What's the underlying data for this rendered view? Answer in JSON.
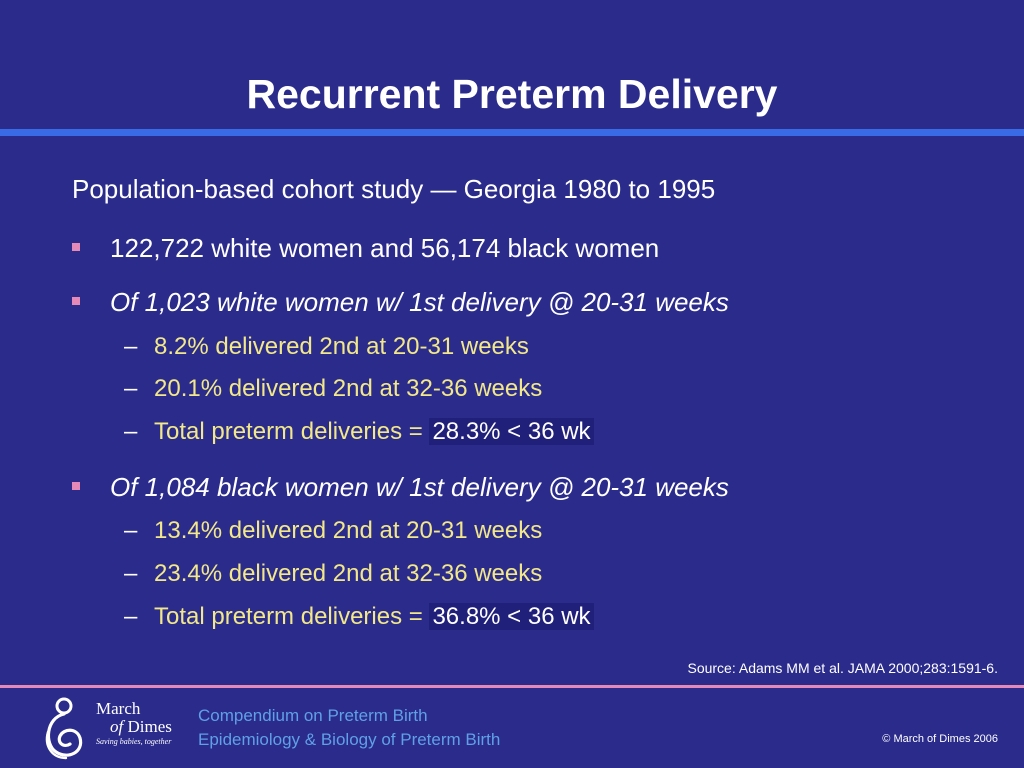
{
  "title": "Recurrent Preterm Delivery",
  "intro": "Population-based cohort study — Georgia 1980 to 1995",
  "bullets": [
    {
      "text": "122,722 white women and 56,174 black women",
      "subs": []
    },
    {
      "text": "Of 1,023 white women w/ 1st delivery @ 20-31 weeks",
      "subs": [
        {
          "text": "8.2% delivered 2nd at 20-31 weeks"
        },
        {
          "text": "20.1% delivered 2nd at 32-36 weeks"
        },
        {
          "text": "Total preterm deliveries = ",
          "highlight": "28.3% < 36 wk"
        }
      ]
    },
    {
      "text": "Of 1,084 black women w/ 1st delivery @  20-31 weeks",
      "subs": [
        {
          "text": "13.4% delivered 2nd at 20-31 weeks"
        },
        {
          "text": "23.4% delivered 2nd at 32-36 weeks"
        },
        {
          "text": "Total preterm deliveries = ",
          "highlight": "36.8% < 36 wk"
        }
      ]
    }
  ],
  "dash": "–",
  "source": "Source: Adams MM et al. JAMA 2000;283:1591-6.",
  "logo": {
    "line1": "March",
    "line2_prefix": "of",
    "line2_suffix": " Dimes",
    "tagline": "Saving babies, together"
  },
  "footer": {
    "line1": "Compendium on Preterm Birth",
    "line2": "Epidemiology & Biology of Preterm Birth",
    "copyright": "©  March of Dimes 2006"
  },
  "colors": {
    "background": "#2B2B8C",
    "title_rule": "#3A6BE6",
    "bullet_marker": "#E58AB8",
    "sub_text": "#F2E88A",
    "footer_text": "#5FA0E6"
  }
}
